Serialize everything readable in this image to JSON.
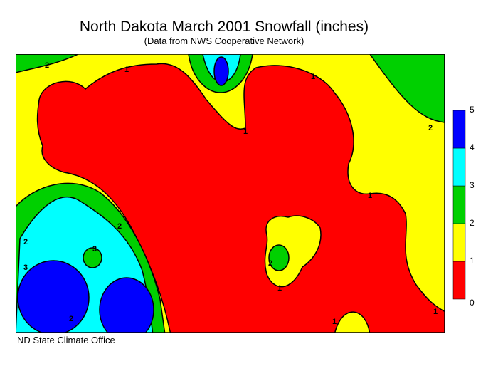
{
  "title": "North Dakota March 2001 Snowfall (inches)",
  "subtitle": "(Data from NWS Cooperative Network)",
  "credit": "ND State Climate Office",
  "legend": {
    "bins": [
      0,
      1,
      2,
      3,
      4,
      5
    ],
    "colors": [
      "#ff0000",
      "#ffff00",
      "#00d000",
      "#00ffff",
      "#0000ff"
    ]
  },
  "contour_labels": [
    2,
    1,
    1,
    2,
    1,
    2,
    1,
    2,
    3,
    3,
    2,
    1,
    2,
    1,
    1
  ]
}
